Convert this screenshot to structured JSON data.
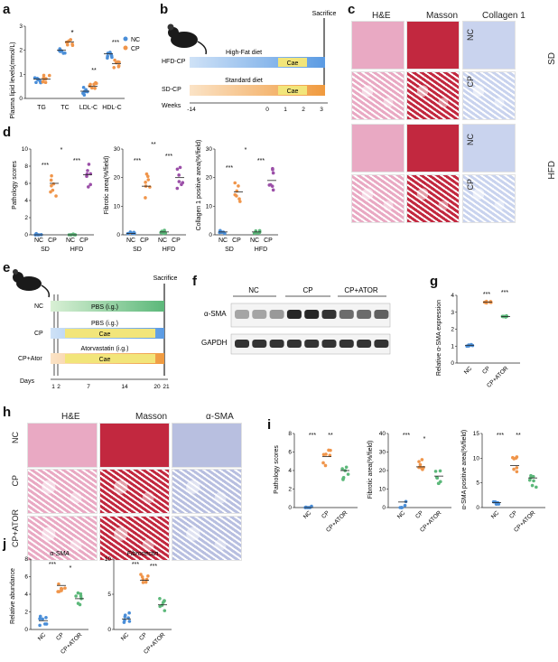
{
  "panels": {
    "a": "a",
    "b": "b",
    "c": "c",
    "d": "d",
    "e": "e",
    "f": "f",
    "g": "g",
    "h": "h",
    "i": "i",
    "j": "j"
  },
  "colors": {
    "nc": "#4a8ed8",
    "cp": "#f0954a",
    "ator": "#5cb87a",
    "hfd": "#9b4fa8",
    "he": "#e9a9c3",
    "masson": "#c2283f",
    "collagen": "#c9d3ee",
    "sma": "#b8bfe0"
  },
  "panel_a": {
    "ylabel": "Plasma lipid levels(mmol/L)",
    "legend": [
      "NC",
      "CP"
    ],
    "significance": [
      "*",
      "**",
      "***"
    ]
  },
  "panel_b": {
    "sacrifice": "Sacrifice",
    "hfd_cp": "HFD-CP",
    "sd_cp": "SD-CP",
    "high_fat_diet": "High-Fat diet",
    "standard_diet": "Standard diet",
    "cae": "Cae",
    "weeks_label": "Weeks",
    "week_ticks": [
      "-14",
      "0",
      "1",
      "2",
      "3"
    ]
  },
  "panel_c": {
    "headers": [
      "H&E",
      "Masson",
      "Collagen 1"
    ],
    "rows": [
      "NC",
      "CP",
      "NC",
      "CP"
    ],
    "groups": [
      "SD",
      "HFD"
    ]
  },
  "panel_d": {
    "ylabels": [
      "Pathology scores",
      "Fibrotic area(%/field)",
      "Collagen 1 positive area(%/field)"
    ],
    "xgroups": [
      "NC",
      "CP",
      "NC",
      "CP"
    ],
    "diets": [
      "SD",
      "HFD"
    ],
    "sig": [
      "***",
      "***",
      "*",
      "***",
      "***",
      "**",
      "***",
      "***",
      "*"
    ]
  },
  "panel_e": {
    "sacrifice": "Sacrifice",
    "nc": "NC",
    "cp": "CP",
    "cp_ator": "CP+Ator",
    "pbs": "PBS (i.g.)",
    "atorvastatin": "Atorvastatin (i.g.)",
    "cae": "Cae",
    "days_label": "Days",
    "day_ticks": [
      "1",
      "2",
      "7",
      "14",
      "20",
      "21"
    ]
  },
  "panel_f": {
    "groups": [
      "NC",
      "CP",
      "CP+ATOR"
    ],
    "bands": [
      "α-SMA",
      "GAPDH"
    ]
  },
  "panel_g": {
    "ylabel": "Relative α-SMA expression",
    "xlabels": [
      "NC",
      "CP",
      "CP+ATOR"
    ],
    "sig": [
      "***",
      "***"
    ]
  },
  "panel_h": {
    "headers": [
      "H&E",
      "Masson",
      "α-SMA"
    ],
    "rows": [
      "NC",
      "CP",
      "CP+ATOR"
    ]
  },
  "panel_i": {
    "ylabels": [
      "Pathology scores",
      "Fibrotic area(%/field)",
      "α-SMA positive area(%/field)"
    ],
    "xlabels": [
      "NC",
      "CP",
      "CP+ATOR"
    ],
    "sig": [
      "***",
      "**",
      "***",
      "*",
      "***",
      "**"
    ]
  },
  "panel_j": {
    "ylabel": "Relative abundance",
    "titles": [
      "α-SMA",
      "Fibronectin"
    ],
    "xlabels": [
      "NC",
      "CP",
      "CP+ATOR"
    ],
    "sig": [
      "***",
      "*",
      "***",
      "***"
    ]
  },
  "chart_data": [
    {
      "type": "scatter",
      "panel": "a",
      "categories": [
        "TG",
        "TC",
        "LDL-C",
        "HDL-C"
      ],
      "ylim": [
        0,
        3
      ],
      "yticks": [
        0,
        1,
        2,
        3
      ],
      "series": [
        {
          "name": "NC",
          "means": [
            0.8,
            2.0,
            0.3,
            1.85
          ]
        },
        {
          "name": "CP",
          "means": [
            0.8,
            2.35,
            0.5,
            1.45
          ]
        }
      ]
    },
    {
      "type": "scatter",
      "panel": "d1",
      "categories": [
        "NC",
        "CP",
        "NC",
        "CP"
      ],
      "ylim": [
        0,
        10
      ],
      "yticks": [
        0,
        2,
        4,
        6,
        8,
        10
      ],
      "means": [
        0,
        6,
        0,
        7
      ]
    },
    {
      "type": "scatter",
      "panel": "d2",
      "categories": [
        "NC",
        "CP",
        "NC",
        "CP"
      ],
      "ylim": [
        0,
        30
      ],
      "yticks": [
        0,
        10,
        20,
        30
      ],
      "means": [
        0.5,
        17,
        1,
        20
      ]
    },
    {
      "type": "scatter",
      "panel": "d3",
      "categories": [
        "NC",
        "CP",
        "NC",
        "CP"
      ],
      "ylim": [
        0,
        30
      ],
      "yticks": [
        0,
        10,
        20,
        30
      ],
      "means": [
        1,
        15,
        1,
        19
      ]
    },
    {
      "type": "scatter",
      "panel": "g",
      "categories": [
        "NC",
        "CP",
        "CP+ATOR"
      ],
      "ylim": [
        0,
        4
      ],
      "yticks": [
        0,
        1,
        2,
        3,
        4
      ],
      "means": [
        1.05,
        3.6,
        2.75
      ]
    },
    {
      "type": "scatter",
      "panel": "i1",
      "categories": [
        "NC",
        "CP",
        "CP+ATOR"
      ],
      "ylim": [
        0,
        8
      ],
      "yticks": [
        0,
        2,
        4,
        6,
        8
      ],
      "means": [
        0,
        5.5,
        4
      ]
    },
    {
      "type": "scatter",
      "panel": "i2",
      "categories": [
        "NC",
        "CP",
        "CP+ATOR"
      ],
      "ylim": [
        0,
        40
      ],
      "yticks": [
        0,
        10,
        20,
        30,
        40
      ],
      "means": [
        3,
        22,
        17
      ]
    },
    {
      "type": "scatter",
      "panel": "i3",
      "categories": [
        "NC",
        "CP",
        "CP+ATOR"
      ],
      "ylim": [
        0,
        15
      ],
      "yticks": [
        0,
        5,
        10,
        15
      ],
      "means": [
        1,
        8.5,
        6
      ]
    },
    {
      "type": "scatter",
      "panel": "j1",
      "categories": [
        "NC",
        "CP",
        "CP+ATOR"
      ],
      "ylim": [
        0,
        8
      ],
      "yticks": [
        0,
        2,
        4,
        6,
        8
      ],
      "means": [
        1,
        5,
        3.5
      ]
    },
    {
      "type": "scatter",
      "panel": "j2",
      "categories": [
        "NC",
        "CP",
        "CP+ATOR"
      ],
      "ylim": [
        0,
        10
      ],
      "yticks": [
        0,
        5,
        10
      ],
      "means": [
        1.5,
        7,
        3.5
      ]
    }
  ]
}
